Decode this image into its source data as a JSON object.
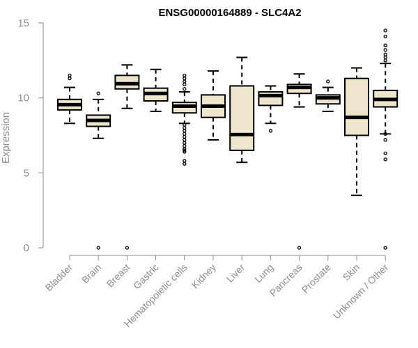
{
  "chart_data": {
    "type": "boxplot",
    "title": "ENSG00000164889 - SLC4A2",
    "xlabel": "",
    "ylabel": "Expression",
    "ylim": [
      0,
      15
    ],
    "yticks": [
      0,
      5,
      10,
      15
    ],
    "box_fill": "#ede6cd",
    "categories": [
      "Bladder",
      "Brain",
      "Breast",
      "Gastric",
      "Hematopoietic cells",
      "Kidney",
      "Liver",
      "Lung",
      "Pancreas",
      "Prostate",
      "Skin",
      "Unknown / Other"
    ],
    "boxes": [
      {
        "min": 8.3,
        "q1": 9.2,
        "median": 9.55,
        "q3": 9.9,
        "max": 10.7,
        "outliers": [
          11.3,
          11.5
        ]
      },
      {
        "min": 7.3,
        "q1": 8.1,
        "median": 8.5,
        "q3": 8.85,
        "max": 9.9,
        "outliers": [
          10.3,
          0
        ]
      },
      {
        "min": 9.3,
        "q1": 10.6,
        "median": 10.95,
        "q3": 11.5,
        "max": 12.2,
        "outliers": [
          0
        ]
      },
      {
        "min": 9.1,
        "q1": 9.8,
        "median": 10.3,
        "q3": 10.65,
        "max": 11.9,
        "outliers": []
      },
      {
        "min": 8.3,
        "q1": 9.0,
        "median": 9.45,
        "q3": 9.7,
        "max": 10.4,
        "outliers": [
          11.5,
          11.3,
          11.1,
          10.9,
          10.6,
          8.2,
          8.0,
          7.8,
          7.6,
          7.4,
          7.2,
          7.0,
          6.8,
          6.6,
          6.5,
          6.4,
          5.8,
          5.6
        ]
      },
      {
        "min": 7.2,
        "q1": 8.7,
        "median": 9.45,
        "q3": 10.2,
        "max": 11.8,
        "outliers": []
      },
      {
        "min": 5.7,
        "q1": 6.5,
        "median": 7.55,
        "q3": 10.8,
        "max": 12.7,
        "outliers": []
      },
      {
        "min": 8.3,
        "q1": 9.5,
        "median": 10.15,
        "q3": 10.4,
        "max": 10.8,
        "outliers": [
          7.8
        ]
      },
      {
        "min": 9.4,
        "q1": 10.3,
        "median": 10.7,
        "q3": 10.9,
        "max": 11.6,
        "outliers": [
          0
        ]
      },
      {
        "min": 9.1,
        "q1": 9.6,
        "median": 10.0,
        "q3": 10.2,
        "max": 10.7,
        "outliers": [
          11.1
        ]
      },
      {
        "min": 3.5,
        "q1": 7.5,
        "median": 8.7,
        "q3": 11.3,
        "max": 12.0,
        "outliers": []
      },
      {
        "min": 7.6,
        "q1": 9.4,
        "median": 9.9,
        "q3": 10.5,
        "max": 12.3,
        "outliers": [
          14.5,
          14.1,
          13.5,
          13.2,
          12.9,
          12.7,
          12.5,
          7.6,
          7.2,
          6.3,
          5.9,
          0
        ]
      }
    ]
  }
}
